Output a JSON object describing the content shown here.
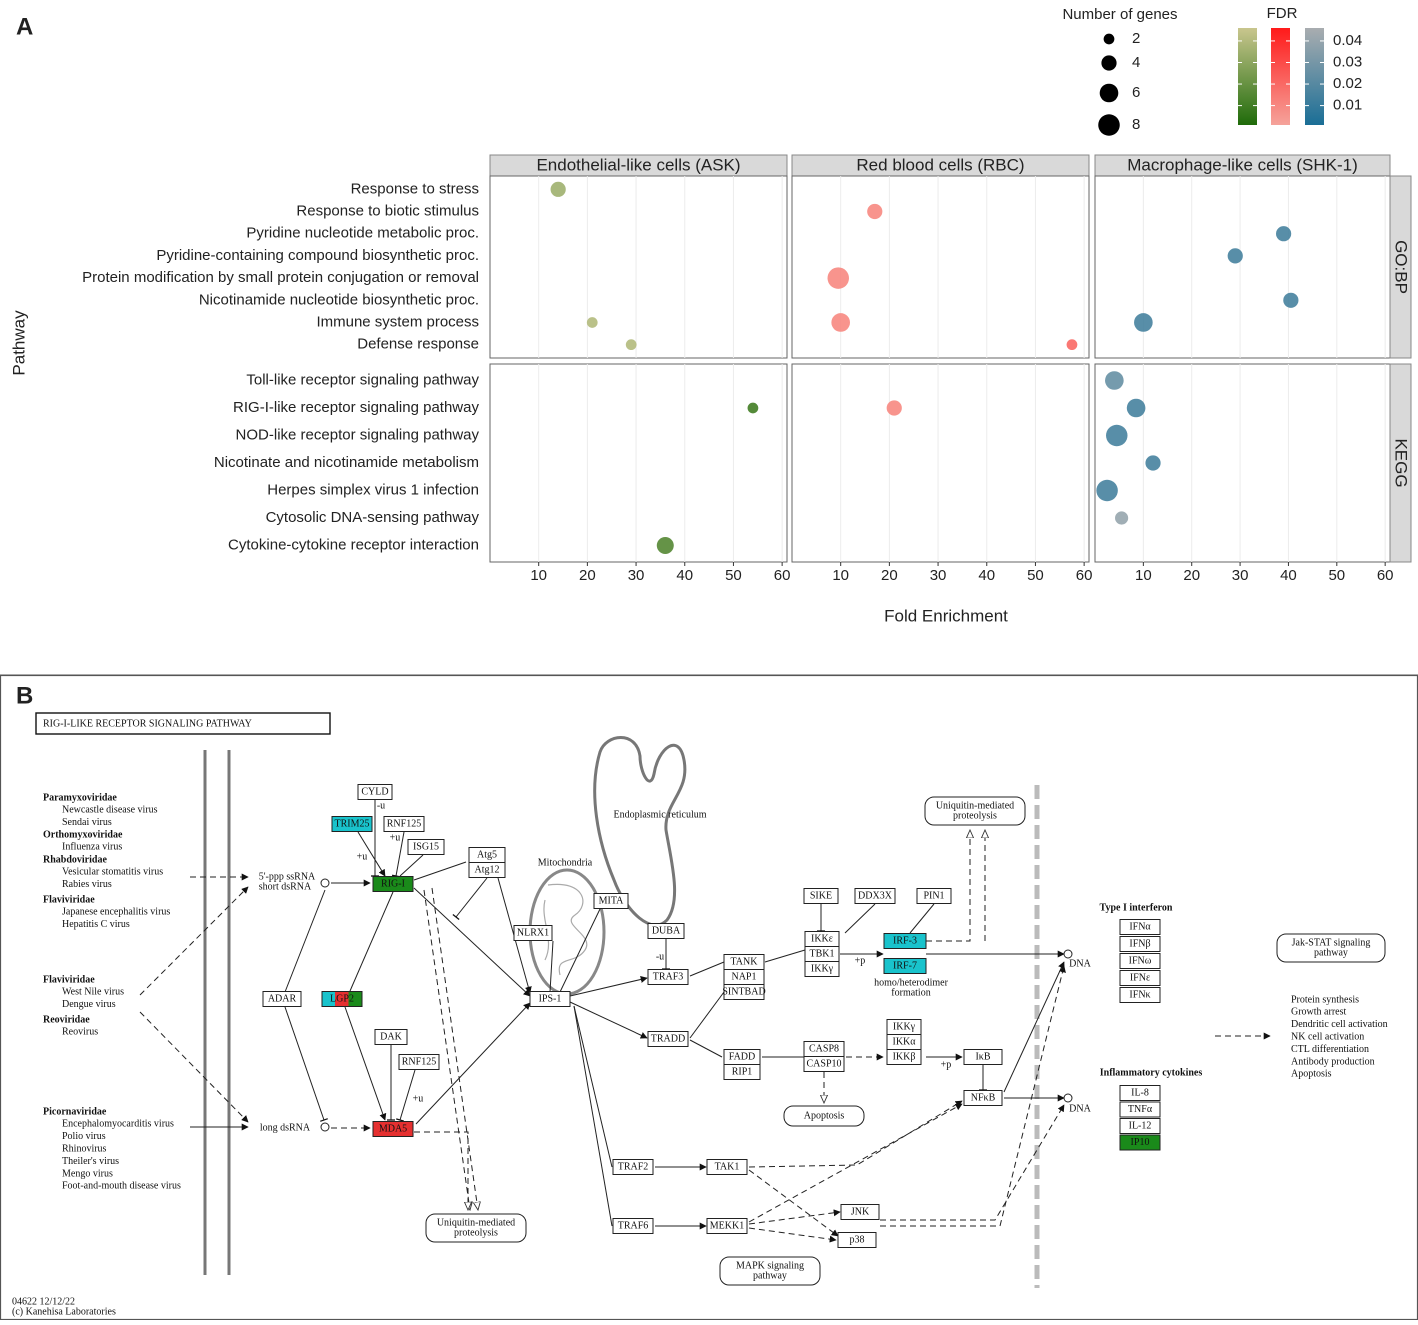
{
  "panel_labels": [
    "A",
    "B"
  ],
  "chart_data": {
    "type": "scatter",
    "x_label": "Fold Enrichment",
    "y_label": "Pathway",
    "row_facets": [
      {
        "name": "GO:BP",
        "categories": [
          "Response to stress",
          "Response to biotic stimulus",
          "Pyridine nucleotide metabolic proc.",
          "Pyridine-containing compound biosynthetic proc.",
          "Protein modification by small protein conjugation or removal",
          "Nicotinamide nucleotide biosynthetic proc.",
          "Immune system process",
          "Defense response"
        ]
      },
      {
        "name": "KEGG",
        "categories": [
          "Toll-like receptor signaling pathway",
          "RIG-I-like receptor signaling pathway",
          "NOD-like receptor signaling pathway",
          "Nicotinate and nicotinamide metabolism",
          "Herpes simplex virus 1 infection",
          "Cytosolic DNA-sensing pathway",
          "Cytokine-cytokine receptor interaction"
        ]
      }
    ],
    "column_facets": [
      {
        "name": "Endothelial-like cells (ASK)",
        "low_color": "#1f6b0a",
        "high_color": "#c9c68e",
        "fold_enrichment": [
          [
            14,
            null,
            null,
            null,
            null,
            null,
            21,
            29
          ],
          [
            null,
            54,
            null,
            null,
            null,
            null,
            36
          ]
        ],
        "genes": [
          [
            4,
            null,
            null,
            null,
            null,
            null,
            2,
            2
          ],
          [
            null,
            2,
            null,
            null,
            null,
            null,
            5
          ]
        ],
        "fdr": [
          [
            0.035,
            null,
            null,
            null,
            null,
            null,
            0.04,
            0.04
          ],
          [
            null,
            0.01,
            null,
            null,
            null,
            null,
            0.015
          ]
        ]
      },
      {
        "name": "Red blood cells (RBC)",
        "low_color": "#f5a39b",
        "high_color": "#ff1a1a",
        "fold_enrichment": [
          [
            null,
            17,
            null,
            null,
            9.5,
            null,
            10,
            57.5
          ],
          [
            null,
            21,
            null,
            null,
            null,
            null,
            null
          ]
        ],
        "genes": [
          [
            null,
            4,
            null,
            null,
            8,
            null,
            6,
            2
          ],
          [
            null,
            4,
            null,
            null,
            null,
            null,
            null
          ]
        ],
        "fdr": [
          [
            null,
            0.01,
            null,
            null,
            0.01,
            null,
            0.01,
            0.02
          ],
          [
            null,
            0.01,
            null,
            null,
            null,
            null,
            null
          ]
        ]
      },
      {
        "name": "Macrophage-like cells (SHK-1)",
        "low_color": "#1a6e96",
        "high_color": "#a9adb0",
        "fold_enrichment": [
          [
            null,
            null,
            39,
            29,
            null,
            40.5,
            10,
            null
          ],
          [
            4,
            8.5,
            4.5,
            12,
            2.5,
            5.5,
            null
          ]
        ],
        "genes": [
          [
            null,
            null,
            4,
            4,
            null,
            4,
            6,
            null
          ],
          [
            6,
            6,
            8,
            4,
            8,
            3,
            null
          ]
        ],
        "fdr": [
          [
            null,
            null,
            0.015,
            0.015,
            null,
            0.015,
            0.015,
            null
          ],
          [
            0.025,
            0.015,
            0.015,
            0.015,
            0.015,
            0.04,
            null
          ]
        ]
      }
    ],
    "xlim": [
      0,
      61
    ],
    "xticks": [
      10,
      20,
      30,
      40,
      50,
      60
    ],
    "grid": true,
    "size_legend": {
      "title": "Number of genes",
      "values": [
        2,
        4,
        6,
        8
      ]
    },
    "color_legend": {
      "title": "FDR",
      "lim": [
        0.001,
        0.046
      ],
      "ticks": [
        0.01,
        0.02,
        0.03,
        0.04
      ]
    }
  },
  "diagram": {
    "title": "RIG-I-LIKE RECEPTOR SIGNALING PATHWAY",
    "virus_groups": [
      {
        "family": "Paramyxoviridae",
        "viruses": [
          "Newcastle disease virus",
          "Sendai virus"
        ]
      },
      {
        "family": "Orthomyxoviridae",
        "viruses": [
          "Influenza virus"
        ]
      },
      {
        "family": "Rhabdoviridae",
        "viruses": [
          "Vesicular stomatitis virus",
          "Rabies virus"
        ]
      },
      {
        "family": "Flaviviridae",
        "viruses": [
          "Japanese encephalitis virus",
          "Hepatitis C virus"
        ]
      },
      {
        "family": "Flaviviridae",
        "viruses": [
          "West Nile virus",
          "Dengue virus"
        ]
      },
      {
        "family": "Reoviridae",
        "viruses": [
          "Reovirus"
        ]
      },
      {
        "family": "Picornaviridae",
        "viruses": [
          "Encephalomyocarditis virus",
          "Polio virus",
          "Rhinovirus",
          "Theiler's virus",
          "Mengo virus",
          "Foot-and-mouth disease virus"
        ]
      }
    ],
    "ligands": [
      "5'-ppp ssRNA",
      "short dsRNA",
      "long dsRNA"
    ],
    "nodes": [
      "CYLD",
      "TRIM25",
      "RNF125",
      "ISG15",
      "RIG-I",
      "Atg5",
      "Atg12",
      "MITA",
      "NLRX1",
      "IPS-1",
      "LGP2",
      "ADAR",
      "DAK",
      "RNF125",
      "MDA5",
      "DUBA",
      "TRAF3",
      "TANK",
      "NAP1",
      "SINTBAD",
      "TRADD",
      "FADD",
      "RIP1",
      "CASP8",
      "CASP10",
      "SIKE",
      "DDX3X",
      "PIN1",
      "IKKε",
      "TBK1",
      "IKKγ",
      "IRF-3",
      "IRF-7",
      "IKKγ",
      "IKKα",
      "IKKβ",
      "IκB",
      "NFκB",
      "TRAF2",
      "TAK1",
      "TRAF6",
      "MEKK1",
      "JNK",
      "p38"
    ],
    "compartments": [
      "Mitochondria",
      "Endoplasmic reticulum"
    ],
    "processes": [
      [
        "Uniquitin-mediated",
        "proteolysis"
      ],
      [
        "Uniquitin-mediated",
        "proteolysis"
      ],
      [
        "Apoptosis"
      ],
      [
        "MAPK signaling",
        "pathway"
      ],
      [
        "Jak-STAT signaling",
        "pathway"
      ]
    ],
    "annotations": [
      "-u",
      "+u",
      "+u",
      "+u",
      "+p",
      "+p",
      "-u",
      "homo/heterodimer",
      "formation",
      "DNA",
      "DNA"
    ],
    "outputs": [
      {
        "title": "Type I interferon",
        "items": [
          "IFNα",
          "IFNβ",
          "IFNω",
          "IFNε",
          "IFNκ"
        ]
      },
      {
        "title": "Inflammatory cytokines",
        "items": [
          "IL-8",
          "TNFα",
          "IL-12",
          "IP10"
        ]
      }
    ],
    "effects": [
      "Protein synthesis",
      "Growth arrest",
      "Dendritic cell activation",
      "NK cell activation",
      "CTL differentiation",
      "Antibody production",
      "Apoptosis"
    ],
    "footer": [
      "04622 12/12/22",
      "(c) Kanehisa Laboratories"
    ]
  }
}
